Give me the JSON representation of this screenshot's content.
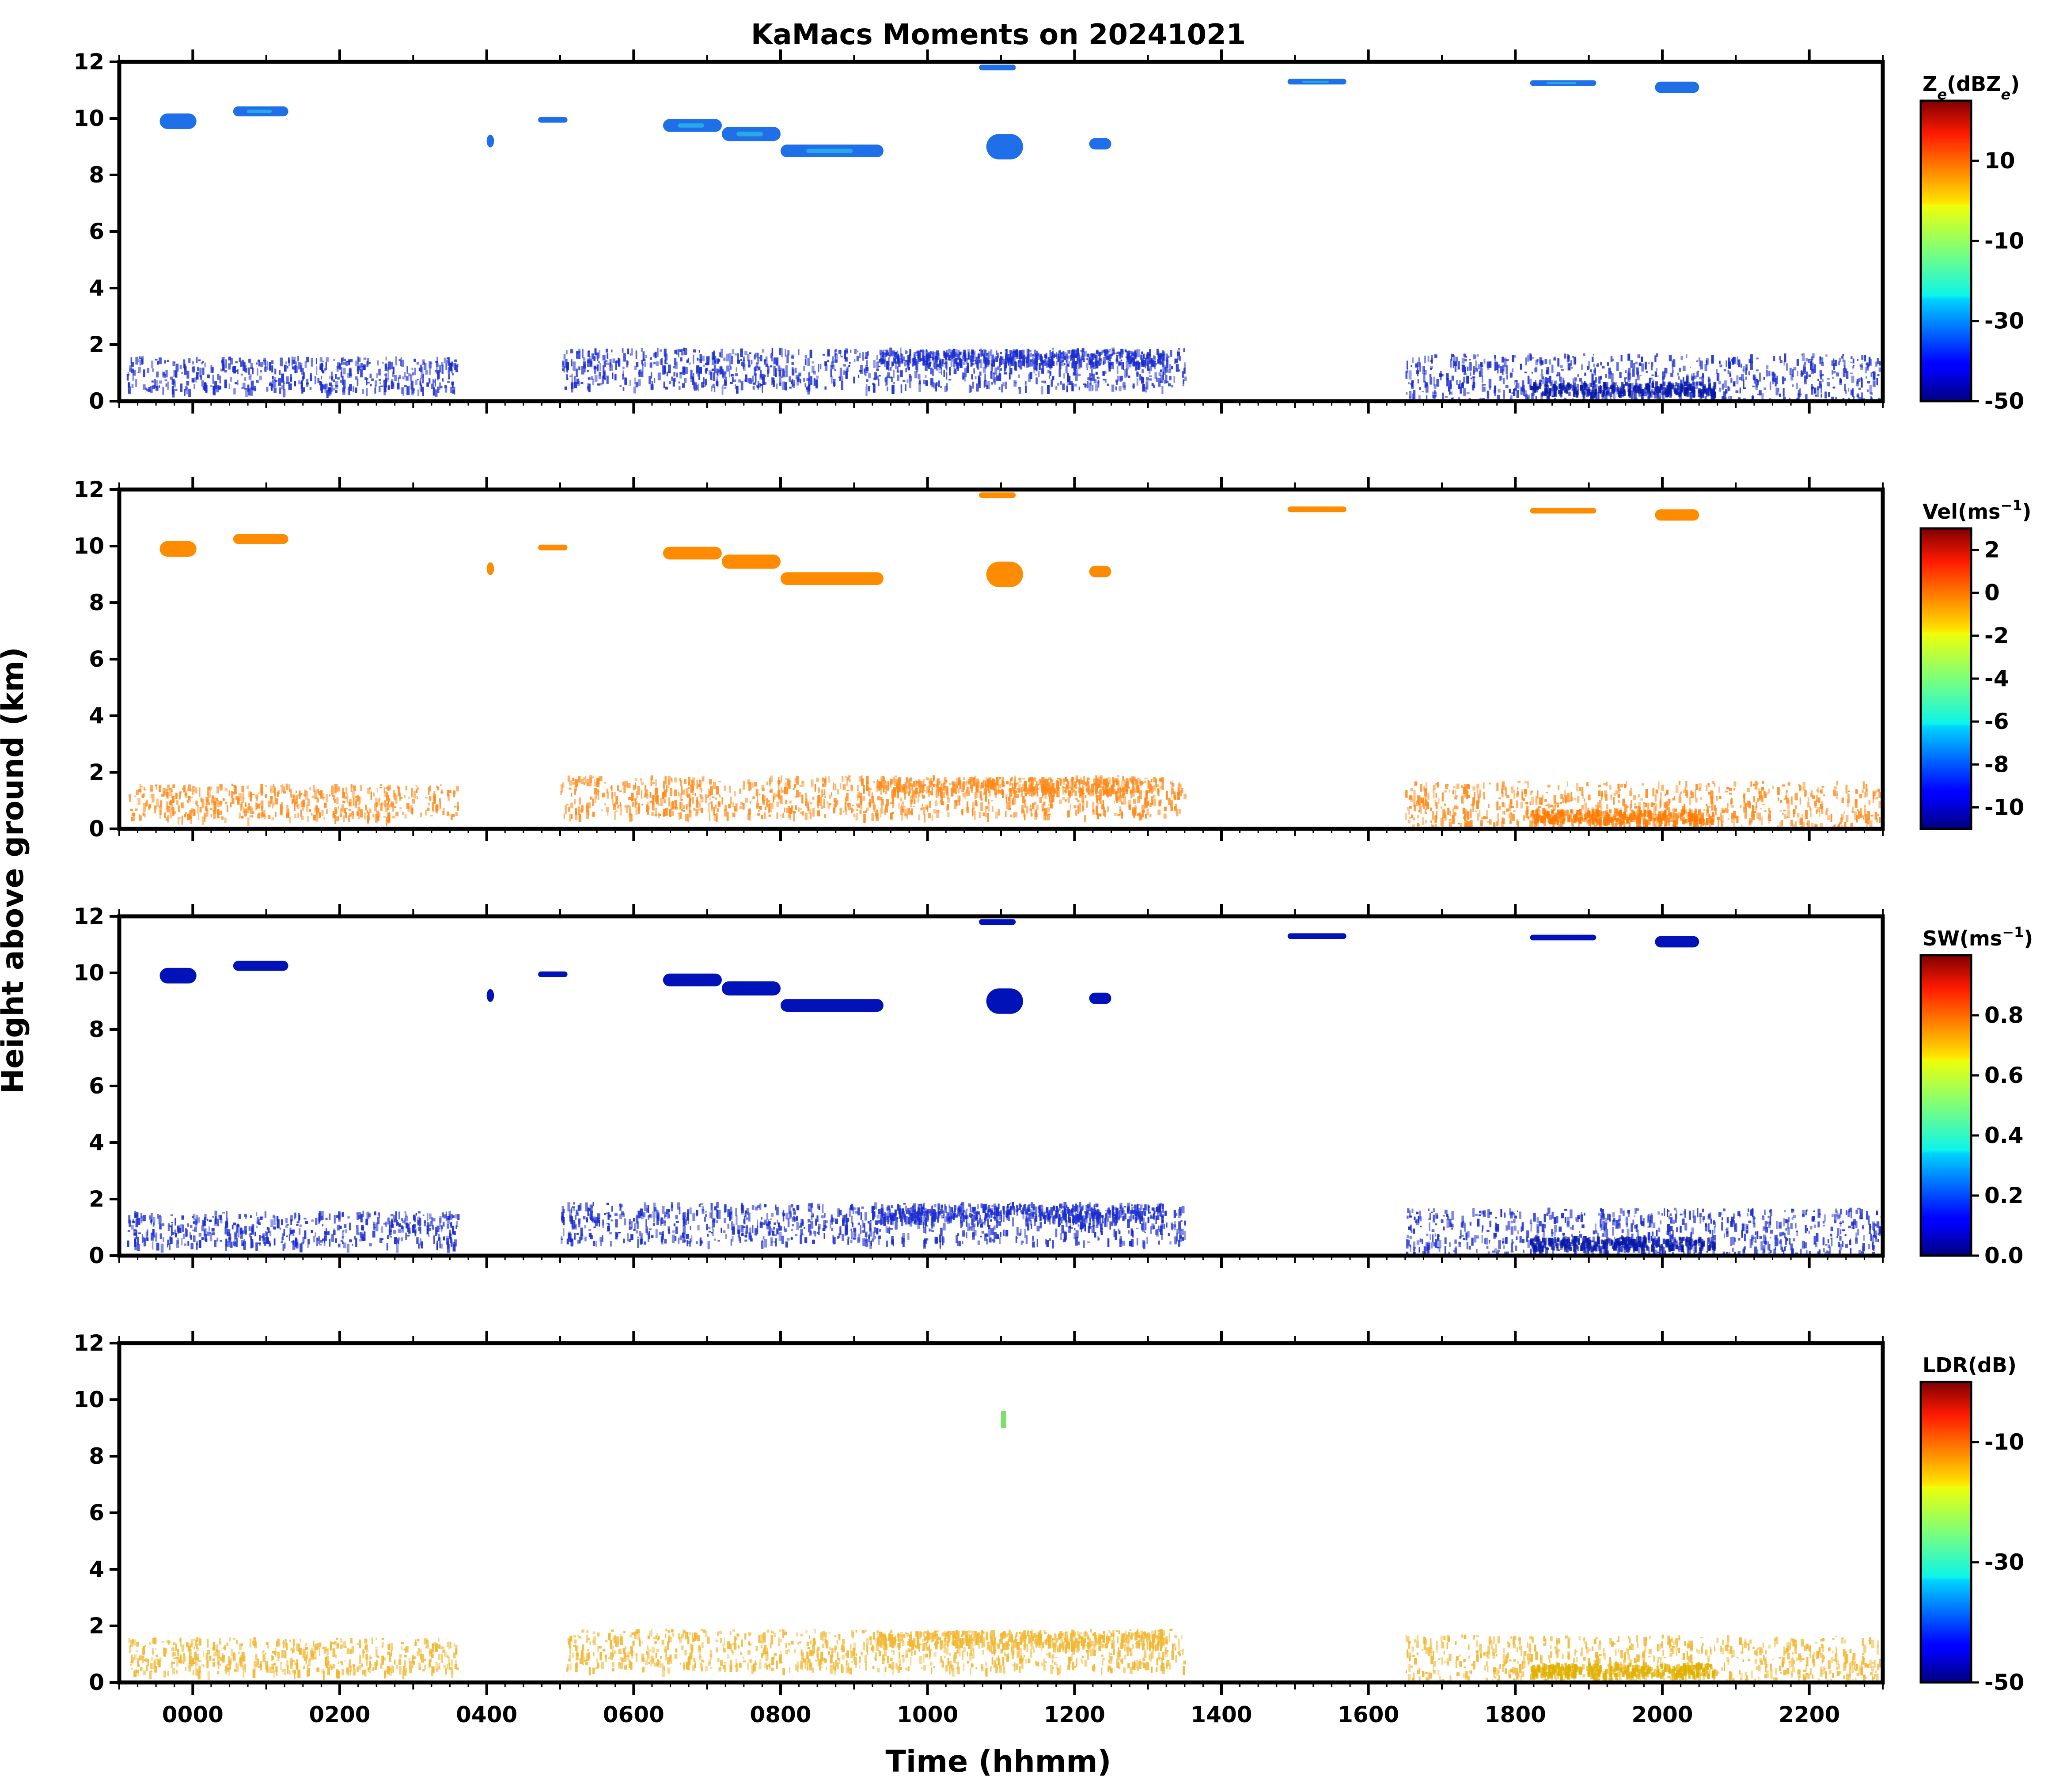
{
  "chart_data": {
    "type": "heatmap",
    "title": "KaMacs Moments on 20241021",
    "xlabel": "Time (hhmm)",
    "ylabel": "Height above ground (km)",
    "xlim": [
      -100,
      2300
    ],
    "ylim": [
      0,
      12
    ],
    "x_ticks": [
      "0000",
      "0200",
      "0400",
      "0600",
      "0800",
      "1000",
      "1200",
      "1400",
      "1600",
      "1800",
      "2000",
      "2200"
    ],
    "x_tick_values": [
      0,
      200,
      400,
      600,
      800,
      1000,
      1200,
      1400,
      1600,
      1800,
      2000,
      2200
    ],
    "y_ticks": [
      "0",
      "2",
      "4",
      "6",
      "8",
      "10",
      "12"
    ],
    "y_tick_values": [
      0,
      2,
      4,
      6,
      8,
      10,
      12
    ],
    "colormap": "jet",
    "panels": [
      {
        "colorbar_label_main": "Z",
        "colorbar_label_sub": "e",
        "colorbar_label_rest": "(dBZ",
        "colorbar_label_sub2": "e",
        "colorbar_label_end": ")",
        "vmin": -50,
        "vmax": 25,
        "colorbar_ticks": [
          "10",
          "-10",
          "-30",
          "-50"
        ],
        "colorbar_tick_values": [
          10,
          -10,
          -30,
          -50
        ],
        "cloud_color": "#1f6fe8",
        "cloud_core_color": "#2ec0e8",
        "low_color": "#1a2ccf",
        "low_dense_color": "#0a1aa8"
      },
      {
        "colorbar_label_main": "Vel(ms",
        "colorbar_label_sup": "−1",
        "colorbar_label_end": ")",
        "vmin": -11,
        "vmax": 3,
        "colorbar_ticks": [
          "2",
          "0",
          "-2",
          "-4",
          "-6",
          "-8",
          "-10"
        ],
        "colorbar_tick_values": [
          2,
          0,
          -2,
          -4,
          -6,
          -8,
          -10
        ],
        "cloud_color": "#ff8c00",
        "cloud_core_color": "#ff9a10",
        "low_color": "#ff8a1a",
        "low_dense_color": "#ff7a00"
      },
      {
        "colorbar_label_main": "SW(ms",
        "colorbar_label_sup": "−1",
        "colorbar_label_end": ")",
        "vmin": 0.0,
        "vmax": 1.0,
        "colorbar_ticks": [
          "0.8",
          "0.6",
          "0.4",
          "0.2",
          "0.0"
        ],
        "colorbar_tick_values": [
          0.8,
          0.6,
          0.4,
          0.2,
          0.0
        ],
        "cloud_color": "#0012b8",
        "cloud_core_color": "#0012b8",
        "low_color": "#1a2ccf",
        "low_dense_color": "#0a1aa8"
      },
      {
        "colorbar_label_main": "LDR(dB)",
        "vmin": -50,
        "vmax": 0,
        "colorbar_ticks": [
          "-10",
          "-30",
          "-50"
        ],
        "colorbar_tick_values": [
          -10,
          -30,
          -50
        ],
        "cloud_color": "#7ee06a",
        "cloud_core_color": "#7ee06a",
        "low_color": "#f2b630",
        "low_dense_color": "#e0b000",
        "cloud_only_feature": [
          1100,
          9.3
        ]
      }
    ],
    "features": {
      "upper_cloud": [
        {
          "t0": -45,
          "t1": 5,
          "h": 9.9,
          "th": 0.55
        },
        {
          "t0": 55,
          "t1": 130,
          "h": 10.25,
          "th": 0.35
        },
        {
          "t0": 400,
          "t1": 410,
          "h": 9.2,
          "th": 0.45
        },
        {
          "t0": 470,
          "t1": 510,
          "h": 9.95,
          "th": 0.2
        },
        {
          "t0": 640,
          "t1": 720,
          "h": 9.75,
          "th": 0.45
        },
        {
          "t0": 720,
          "t1": 800,
          "h": 9.45,
          "th": 0.5
        },
        {
          "t0": 800,
          "t1": 940,
          "h": 8.85,
          "th": 0.45
        },
        {
          "t0": 1080,
          "t1": 1130,
          "h": 9.0,
          "th": 0.9
        },
        {
          "t0": 1220,
          "t1": 1250,
          "h": 9.1,
          "th": 0.4
        },
        {
          "t0": 1070,
          "t1": 1120,
          "h": 11.8,
          "th": 0.2
        },
        {
          "t0": 1490,
          "t1": 1570,
          "h": 11.3,
          "th": 0.2
        },
        {
          "t0": 1820,
          "t1": 1910,
          "h": 11.25,
          "th": 0.2
        },
        {
          "t0": 1990,
          "t1": 2050,
          "h": 11.1,
          "th": 0.4
        }
      ],
      "low_cloud_band": [
        {
          "t0": -90,
          "t1": 360,
          "h": 1.0,
          "spread": 0.6
        },
        {
          "t0": 500,
          "t1": 1350,
          "h": 1.2,
          "spread": 0.7
        },
        {
          "t0": 930,
          "t1": 1320,
          "h": 1.6,
          "spread": 0.25
        },
        {
          "t0": 1650,
          "t1": 2300,
          "h": 0.9,
          "spread": 0.8
        },
        {
          "t0": 1820,
          "t1": 2070,
          "h": 0.5,
          "spread": 0.2
        }
      ]
    }
  }
}
